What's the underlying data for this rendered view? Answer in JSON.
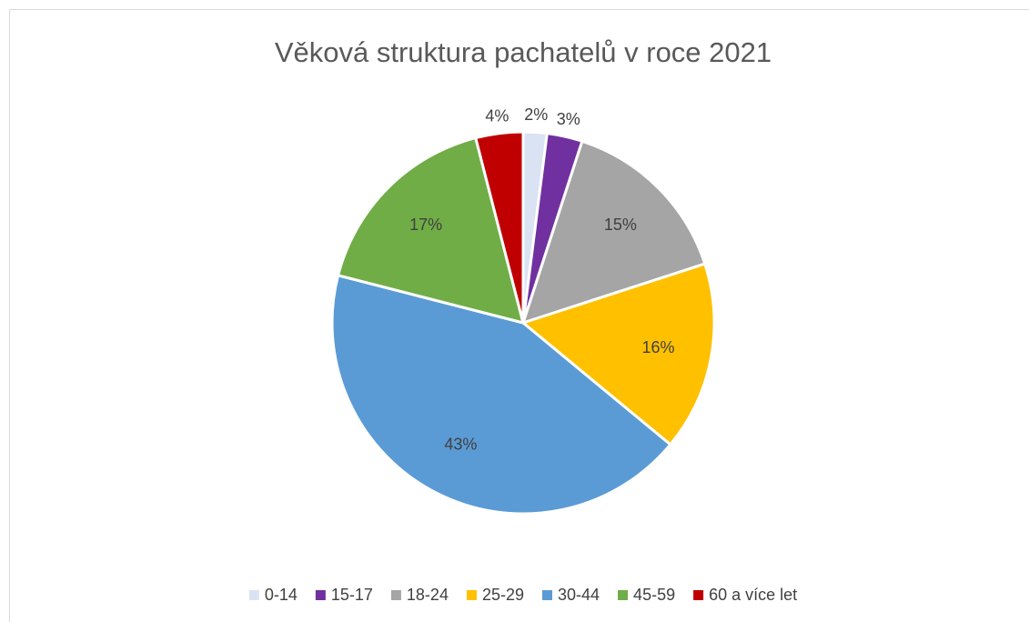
{
  "chart_data": {
    "type": "pie",
    "title": "Věková struktura pachatelů v roce 2021",
    "categories": [
      "0-14",
      "15-17",
      "18-24",
      "25-29",
      "30-44",
      "45-59",
      "60 a více let"
    ],
    "values": [
      2,
      3,
      15,
      16,
      43,
      17,
      4
    ],
    "value_labels": [
      "2%",
      "3%",
      "15%",
      "16%",
      "43%",
      "17%",
      "4%"
    ],
    "colors": [
      "#dae3f3",
      "#7030a0",
      "#a5a5a5",
      "#ffc000",
      "#5b9bd5",
      "#70ad47",
      "#c00000"
    ],
    "legend": "bottom"
  }
}
